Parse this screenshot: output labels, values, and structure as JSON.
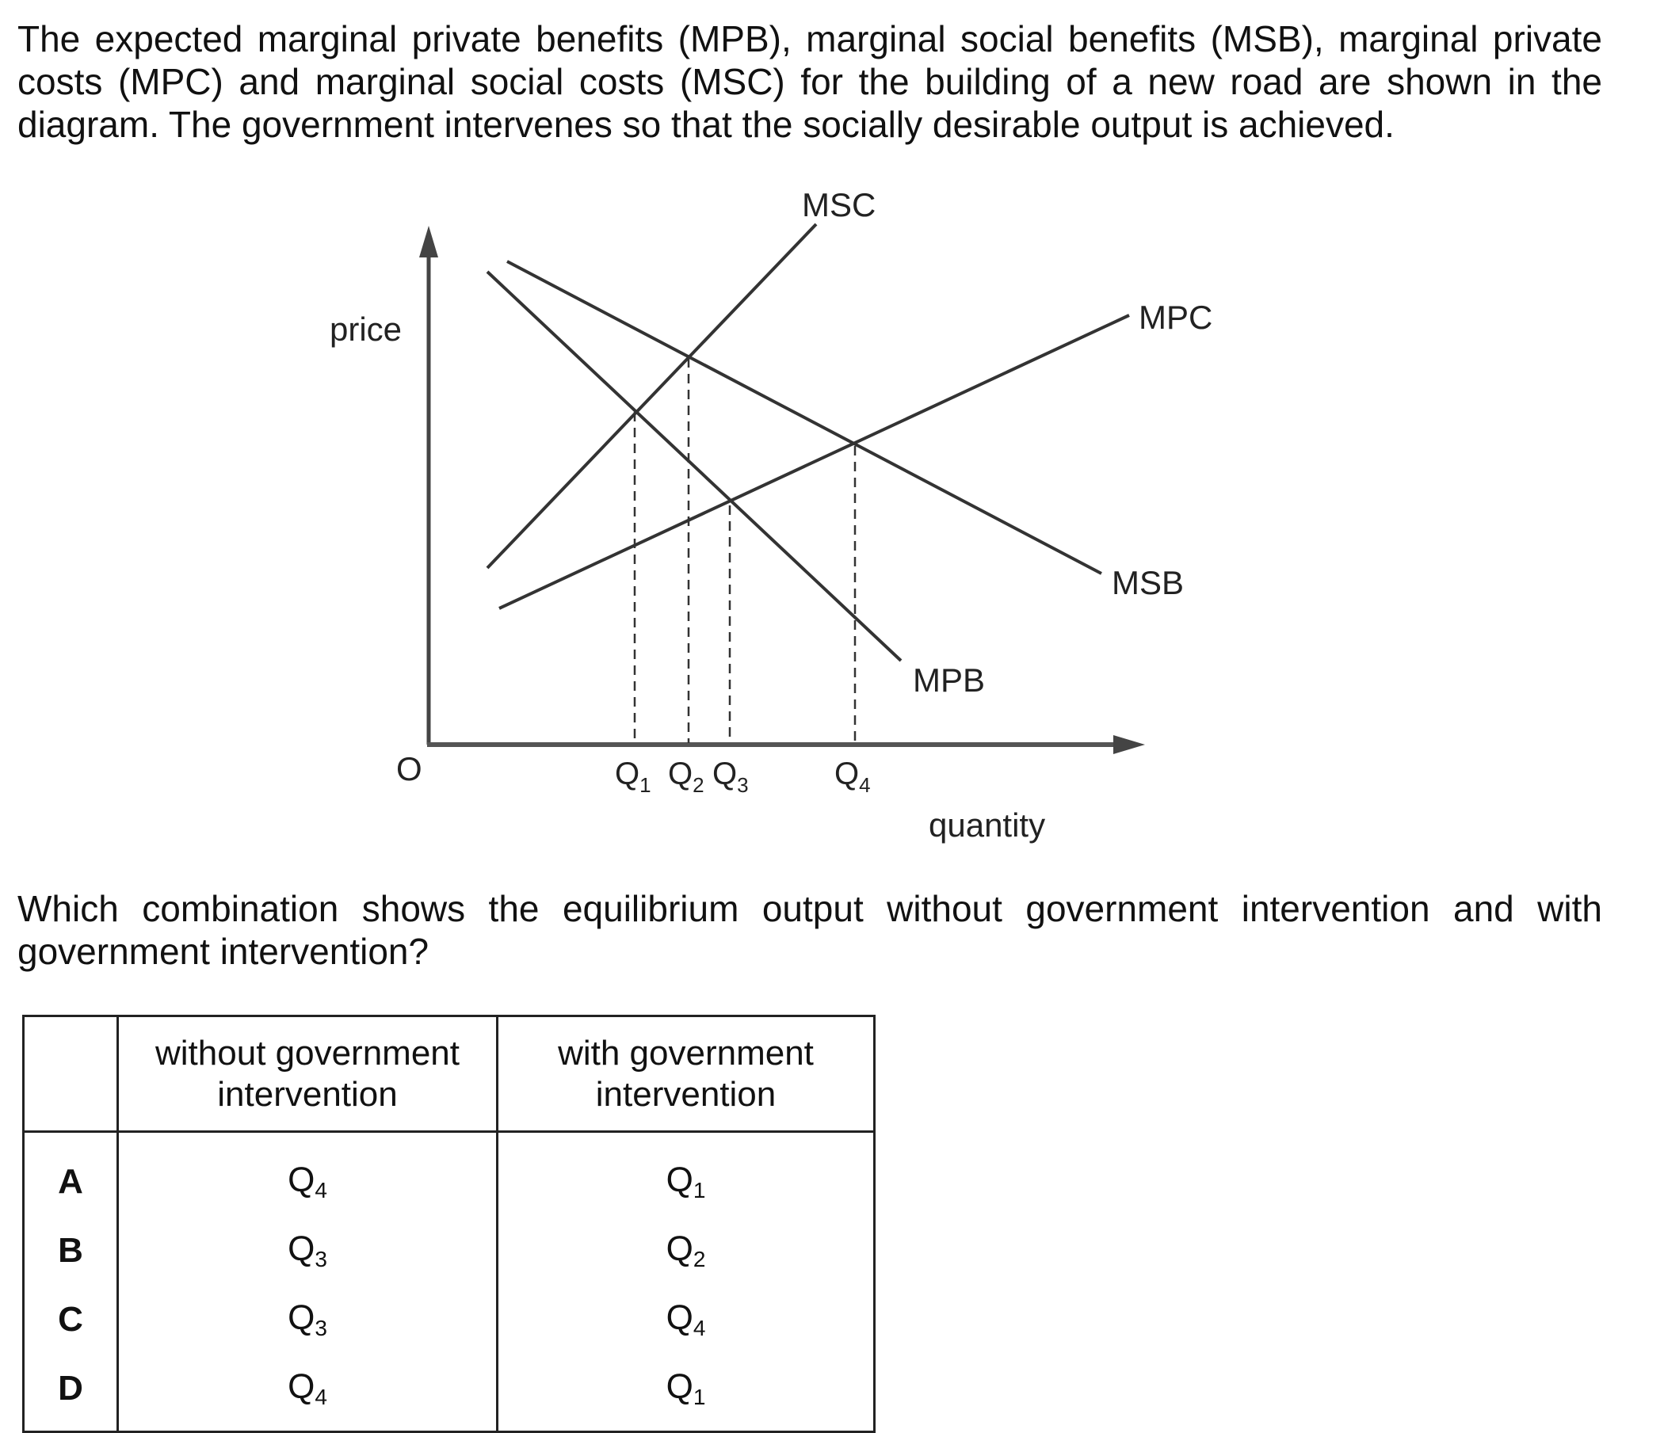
{
  "intro": {
    "lines": [
      "The expected marginal private benefits (MPB), marginal social benefits (MSB), marginal private",
      "costs (MPC) and marginal social costs (MSC) for the building of a new road are shown in the",
      "diagram. The government intervenes so that the socially desirable output is achieved."
    ]
  },
  "diagram": {
    "y_axis_label": "price",
    "x_axis_label": "quantity",
    "origin_label": "O",
    "curves": {
      "msc": "MSC",
      "mpc": "MPC",
      "msb": "MSB",
      "mpb": "MPB"
    },
    "ticks": [
      {
        "base": "Q",
        "sub": "1"
      },
      {
        "base": "Q",
        "sub": "2"
      },
      {
        "base": "Q",
        "sub": "3"
      },
      {
        "base": "Q",
        "sub": "4"
      }
    ]
  },
  "question": {
    "lines": [
      "Which combination shows the equilibrium output without government intervention and with",
      "government intervention?"
    ]
  },
  "table": {
    "headers": [
      "",
      "without government intervention",
      "with government intervention"
    ],
    "header_lines": [
      [
        "without government",
        "intervention"
      ],
      [
        "with government",
        "intervention"
      ]
    ],
    "rows": [
      {
        "letter": "A",
        "without": {
          "base": "Q",
          "sub": "4"
        },
        "with": {
          "base": "Q",
          "sub": "1"
        }
      },
      {
        "letter": "B",
        "without": {
          "base": "Q",
          "sub": "3"
        },
        "with": {
          "base": "Q",
          "sub": "2"
        }
      },
      {
        "letter": "C",
        "without": {
          "base": "Q",
          "sub": "3"
        },
        "with": {
          "base": "Q",
          "sub": "4"
        }
      },
      {
        "letter": "D",
        "without": {
          "base": "Q",
          "sub": "4"
        },
        "with": {
          "base": "Q",
          "sub": "1"
        }
      }
    ]
  }
}
